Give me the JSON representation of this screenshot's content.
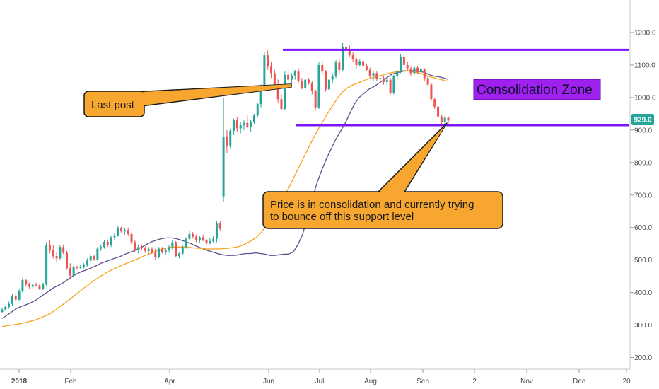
{
  "chart_data": {
    "type": "candlestick",
    "y_axis": {
      "ticks": [
        200,
        300,
        400,
        500,
        600,
        700,
        800,
        900,
        1000,
        1100,
        1200
      ],
      "tick_labels": [
        "200.0",
        "300.0",
        "400.0",
        "500.0",
        "600.0",
        "700.0",
        "800.0",
        "900.0",
        "1000.0",
        "1100.0",
        "1200.0"
      ],
      "range": [
        155,
        1300
      ],
      "side": "right"
    },
    "x_axis": {
      "tick_labels": [
        "2018",
        "Feb",
        "Apr",
        "Jun",
        "Jul",
        "Aug",
        "Sep",
        "2",
        "Nov",
        "Dec",
        "20"
      ],
      "bold_labels": [
        "2018"
      ]
    },
    "last_price": {
      "label": "929.0",
      "value": 929,
      "color": "#26a69a"
    },
    "candles": {
      "up_color": "#26a69a",
      "down_color": "#ef5350",
      "points": [
        [
          340,
          352,
          336,
          348
        ],
        [
          348,
          360,
          344,
          356
        ],
        [
          356,
          372,
          350,
          365
        ],
        [
          365,
          395,
          360,
          388
        ],
        [
          388,
          398,
          372,
          378
        ],
        [
          378,
          412,
          375,
          405
        ],
        [
          405,
          445,
          400,
          438
        ],
        [
          438,
          442,
          418,
          425
        ],
        [
          425,
          430,
          412,
          418
        ],
        [
          418,
          428,
          410,
          424
        ],
        [
          424,
          430,
          418,
          422
        ],
        [
          422,
          425,
          408,
          412
        ],
        [
          412,
          430,
          408,
          425
        ],
        [
          425,
          555,
          420,
          545
        ],
        [
          545,
          560,
          520,
          530
        ],
        [
          530,
          545,
          505,
          512
        ],
        [
          512,
          525,
          495,
          505
        ],
        [
          505,
          545,
          500,
          540
        ],
        [
          540,
          548,
          518,
          522
        ],
        [
          522,
          528,
          470,
          475
        ],
        [
          475,
          490,
          440,
          452
        ],
        [
          452,
          485,
          448,
          478
        ],
        [
          478,
          482,
          470,
          476
        ],
        [
          476,
          485,
          472,
          480
        ],
        [
          480,
          490,
          474,
          486
        ],
        [
          486,
          505,
          480,
          498
        ],
        [
          498,
          520,
          492,
          512
        ],
        [
          512,
          515,
          498,
          502
        ],
        [
          502,
          540,
          498,
          535
        ],
        [
          535,
          548,
          528,
          540
        ],
        [
          540,
          562,
          535,
          556
        ],
        [
          556,
          560,
          540,
          546
        ],
        [
          546,
          575,
          540,
          570
        ],
        [
          570,
          582,
          560,
          576
        ],
        [
          576,
          605,
          572,
          598
        ],
        [
          598,
          602,
          582,
          588
        ],
        [
          588,
          598,
          578,
          592
        ],
        [
          592,
          600,
          575,
          580
        ],
        [
          580,
          585,
          548,
          555
        ],
        [
          555,
          560,
          525,
          530
        ],
        [
          530,
          548,
          520,
          540
        ],
        [
          540,
          548,
          530,
          536
        ],
        [
          536,
          542,
          522,
          528
        ],
        [
          528,
          540,
          520,
          534
        ],
        [
          534,
          540,
          518,
          524
        ],
        [
          524,
          535,
          500,
          510
        ],
        [
          510,
          540,
          505,
          535
        ],
        [
          535,
          540,
          520,
          525
        ],
        [
          525,
          535,
          515,
          530
        ],
        [
          530,
          545,
          522,
          540
        ],
        [
          540,
          560,
          532,
          555
        ],
        [
          555,
          558,
          508,
          512
        ],
        [
          512,
          525,
          505,
          520
        ],
        [
          520,
          545,
          515,
          540
        ],
        [
          540,
          570,
          535,
          565
        ],
        [
          565,
          590,
          560,
          580
        ],
        [
          580,
          586,
          566,
          572
        ],
        [
          572,
          578,
          555,
          560
        ],
        [
          560,
          575,
          552,
          570
        ],
        [
          570,
          578,
          558,
          562
        ],
        [
          562,
          565,
          545,
          552
        ],
        [
          552,
          568,
          548,
          558
        ],
        [
          558,
          575,
          552,
          565
        ],
        [
          565,
          620,
          555,
          612
        ],
        [
          612,
          620,
          590,
          596
        ],
        [
          696,
          1000,
          680,
          880
        ],
        [
          880,
          900,
          830,
          852
        ],
        [
          852,
          905,
          845,
          898
        ],
        [
          898,
          935,
          885,
          930
        ],
        [
          930,
          940,
          895,
          905
        ],
        [
          905,
          925,
          890,
          915
        ],
        [
          915,
          930,
          900,
          922
        ],
        [
          922,
          945,
          905,
          910
        ],
        [
          910,
          930,
          895,
          925
        ],
        [
          925,
          950,
          918,
          945
        ],
        [
          945,
          985,
          938,
          980
        ],
        [
          980,
          1040,
          970,
          1030
        ],
        [
          1030,
          1140,
          1020,
          1130
        ],
        [
          1130,
          1145,
          1085,
          1095
        ],
        [
          1095,
          1110,
          1060,
          1075
        ],
        [
          1075,
          1085,
          1035,
          1040
        ],
        [
          1040,
          1055,
          985,
          995
        ],
        [
          995,
          1010,
          960,
          965
        ],
        [
          965,
          1080,
          960,
          1070
        ],
        [
          1070,
          1090,
          1048,
          1055
        ],
        [
          1055,
          1075,
          1040,
          1068
        ],
        [
          1068,
          1085,
          1055,
          1080
        ],
        [
          1080,
          1090,
          1045,
          1050
        ],
        [
          1050,
          1060,
          1025,
          1030
        ],
        [
          1030,
          1058,
          1020,
          1055
        ],
        [
          1055,
          1060,
          1040,
          1045
        ],
        [
          1045,
          1052,
          1010,
          1020
        ],
        [
          1020,
          1025,
          960,
          970
        ],
        [
          970,
          1110,
          965,
          1100
        ],
        [
          1100,
          1112,
          1070,
          1080
        ],
        [
          1080,
          1085,
          1018,
          1025
        ],
        [
          1025,
          1060,
          1018,
          1055
        ],
        [
          1055,
          1075,
          1045,
          1065
        ],
        [
          1065,
          1115,
          1060,
          1108
        ],
        [
          1108,
          1120,
          1075,
          1085
        ],
        [
          1085,
          1168,
          1080,
          1155
        ],
        [
          1155,
          1165,
          1138,
          1145
        ],
        [
          1145,
          1160,
          1125,
          1130
        ],
        [
          1130,
          1140,
          1110,
          1118
        ],
        [
          1118,
          1125,
          1090,
          1100
        ],
        [
          1100,
          1118,
          1095,
          1112
        ],
        [
          1112,
          1118,
          1092,
          1098
        ],
        [
          1098,
          1105,
          1080,
          1085
        ],
        [
          1085,
          1092,
          1060,
          1065
        ],
        [
          1065,
          1080,
          1050,
          1075
        ],
        [
          1075,
          1082,
          1052,
          1058
        ],
        [
          1058,
          1068,
          1045,
          1060
        ],
        [
          1060,
          1065,
          1040,
          1048
        ],
        [
          1048,
          1062,
          1038,
          1055
        ],
        [
          1055,
          1060,
          1010,
          1015
        ],
        [
          1015,
          1070,
          1010,
          1065
        ],
        [
          1065,
          1085,
          1055,
          1080
        ],
        [
          1080,
          1135,
          1075,
          1125
        ],
        [
          1125,
          1130,
          1090,
          1100
        ],
        [
          1100,
          1112,
          1082,
          1090
        ],
        [
          1090,
          1095,
          1065,
          1075
        ],
        [
          1075,
          1098,
          1070,
          1092
        ],
        [
          1092,
          1096,
          1072,
          1078
        ],
        [
          1078,
          1092,
          1072,
          1088
        ],
        [
          1088,
          1090,
          1050,
          1060
        ],
        [
          1060,
          1068,
          1035,
          1040
        ],
        [
          1040,
          1045,
          990,
          995
        ],
        [
          995,
          1000,
          965,
          972
        ],
        [
          972,
          978,
          935,
          942
        ],
        [
          942,
          948,
          918,
          925
        ],
        [
          925,
          945,
          918,
          938
        ],
        [
          938,
          942,
          920,
          929
        ]
      ]
    },
    "moving_averages": [
      {
        "color": "#5b4f8c",
        "values": [
          320,
          330,
          340,
          350,
          357,
          362,
          368,
          375,
          385,
          395,
          405,
          415,
          422,
          430,
          440,
          450,
          458,
          465,
          470,
          476,
          482,
          490,
          495,
          500,
          506,
          510,
          517,
          522,
          528,
          535,
          542,
          550,
          557,
          562,
          566,
          568,
          568,
          566,
          562,
          557,
          552,
          545,
          539,
          533,
          528,
          524,
          519,
          516,
          514,
          514,
          515,
          518,
          520,
          520,
          522,
          520,
          518,
          514,
          514,
          516,
          518,
          518,
          525,
          548,
          580,
          632,
          688,
          735,
          775,
          810,
          840,
          870,
          895,
          920,
          950,
          980,
          1000,
          1012,
          1025,
          1032,
          1042,
          1052,
          1062,
          1072,
          1076,
          1080,
          1082,
          1082,
          1083,
          1080,
          1077,
          1070,
          1066,
          1064,
          1060,
          1056
        ]
      },
      {
        "color": "#f7a21b",
        "values": [
          295,
          298,
          300,
          302,
          305,
          308,
          312,
          316,
          322,
          328,
          335,
          345,
          356,
          367,
          378,
          390,
          402,
          413,
          424,
          435,
          445,
          455,
          463,
          471,
          478,
          484,
          490,
          496,
          502,
          509,
          515,
          521,
          527,
          532,
          536,
          539,
          540,
          540,
          540,
          539,
          537,
          536,
          535,
          534,
          534,
          534,
          535,
          536,
          538,
          540,
          545,
          552,
          560,
          570,
          585,
          605,
          625,
          648,
          672,
          700,
          730,
          760,
          790,
          820,
          850,
          878,
          905,
          930,
          955,
          978,
          1000,
          1018,
          1030,
          1038,
          1044,
          1050,
          1056,
          1060,
          1064,
          1068,
          1072,
          1076,
          1079,
          1082,
          1083,
          1081,
          1078,
          1075,
          1070,
          1065,
          1061,
          1057,
          1053,
          1050
        ]
      }
    ],
    "resistance": {
      "value": 1147,
      "color": "#7b14ff"
    },
    "support": {
      "value": 915,
      "color": "#7b14ff"
    },
    "annotations": {
      "last_post": "Last post",
      "consolidation_zone": "Consolidation Zone",
      "price_note_line1": "Price is in consolidation and currently trying",
      "price_note_line2": "to bounce off this support level"
    },
    "grid": false
  }
}
